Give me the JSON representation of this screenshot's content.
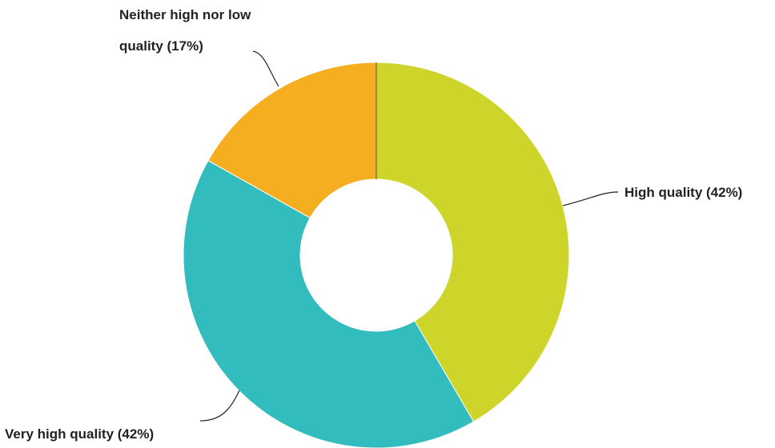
{
  "chart_data": {
    "type": "pie",
    "variant": "donut",
    "slices": [
      {
        "label": "High quality (42%)",
        "value": 42,
        "color": "#cdd52a"
      },
      {
        "label": "Very high quality (42%)",
        "value": 42,
        "color": "#33bcbd"
      },
      {
        "label": "Neither high nor low",
        "label_line2": "quality (17%)",
        "value": 17,
        "color": "#f5ae1f"
      }
    ],
    "legend": "none"
  }
}
